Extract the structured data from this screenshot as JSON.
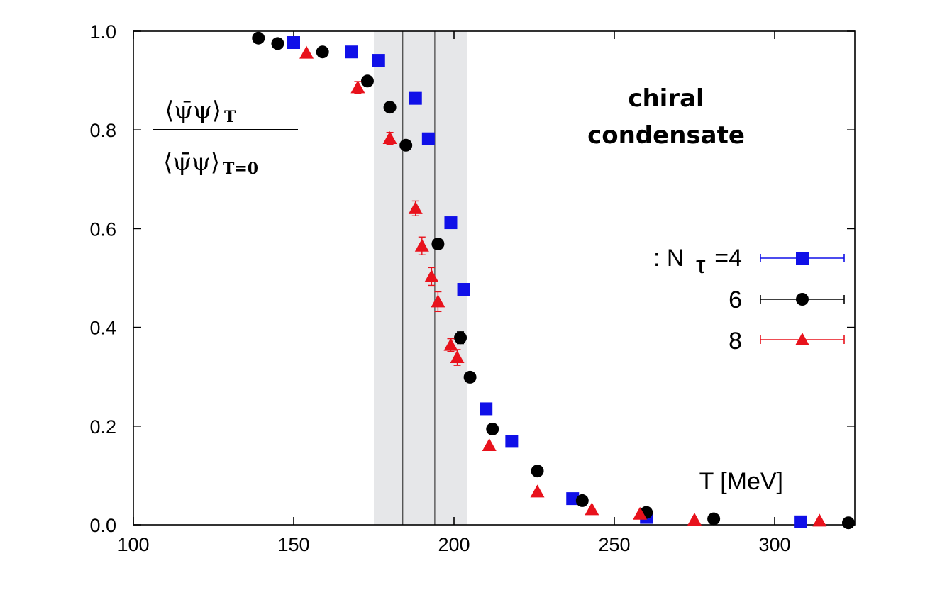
{
  "chart_data": {
    "type": "scatter",
    "xlabel": "T [MeV]",
    "ylabel": "⟨ψ̄ψ⟩T / ⟨ψ̄ψ⟩T=0",
    "ylabel_numerator": "⟨ψ̄ψ⟩",
    "ylabel_numerator_sub": "T",
    "ylabel_denominator": "⟨ψ̄ψ⟩",
    "ylabel_denominator_sub": "T=0",
    "annotation": [
      "chiral",
      "condensate"
    ],
    "xlim": [
      100,
      325
    ],
    "ylim": [
      0.0,
      1.0
    ],
    "x_ticks": [
      100,
      150,
      200,
      250,
      300
    ],
    "x_tick_labels": [
      "100",
      "150",
      "200",
      "250",
      "300"
    ],
    "y_ticks": [
      0.0,
      0.2,
      0.4,
      0.6,
      0.8,
      1.0
    ],
    "y_tick_labels": [
      "0.0",
      "0.2",
      "0.4",
      "0.6",
      "0.8",
      "1.0"
    ],
    "grid": false,
    "shaded_band": {
      "x_range": [
        175,
        204
      ],
      "color": "#e6e7e9"
    },
    "vertical_lines": [
      184,
      194
    ],
    "legend_placement": "right",
    "legend_prefix": ": N",
    "legend_prefix_sub": "τ",
    "series": [
      {
        "name": "=4",
        "marker": "square",
        "color": "#1010e8",
        "x": [
          150,
          168,
          176.5,
          188,
          192,
          199,
          203,
          210,
          218,
          237,
          260,
          308
        ],
        "y": [
          0.977,
          0.958,
          0.941,
          0.864,
          0.782,
          0.612,
          0.477,
          0.235,
          0.169,
          0.053,
          0.015,
          0.006
        ],
        "err": [
          0,
          0,
          0,
          0,
          0,
          0,
          0,
          0,
          0,
          0,
          0,
          0
        ]
      },
      {
        "name": "6",
        "marker": "circle",
        "color": "#000000",
        "x": [
          139,
          145,
          159,
          173,
          180,
          185,
          195,
          202,
          205,
          212,
          226,
          240,
          260,
          281,
          323
        ],
        "y": [
          0.986,
          0.975,
          0.958,
          0.899,
          0.846,
          0.769,
          0.569,
          0.379,
          0.299,
          0.194,
          0.109,
          0.049,
          0.025,
          0.012,
          0.004
        ],
        "err": [
          0,
          0,
          0,
          0,
          0,
          0,
          0,
          0.012,
          0,
          0,
          0,
          0,
          0,
          0,
          0
        ]
      },
      {
        "name": "8",
        "marker": "triangle",
        "color": "#e8121c",
        "x": [
          154,
          170,
          180,
          188,
          190,
          193,
          195,
          199,
          201,
          211,
          226,
          243,
          258,
          275,
          314
        ],
        "y": [
          0.956,
          0.886,
          0.783,
          0.641,
          0.565,
          0.503,
          0.452,
          0.364,
          0.339,
          0.161,
          0.067,
          0.031,
          0.022,
          0.01,
          0.008
        ],
        "err": [
          0,
          0.012,
          0.012,
          0.015,
          0.018,
          0.018,
          0.02,
          0.013,
          0.016,
          0,
          0,
          0,
          0,
          0,
          0
        ]
      }
    ]
  }
}
